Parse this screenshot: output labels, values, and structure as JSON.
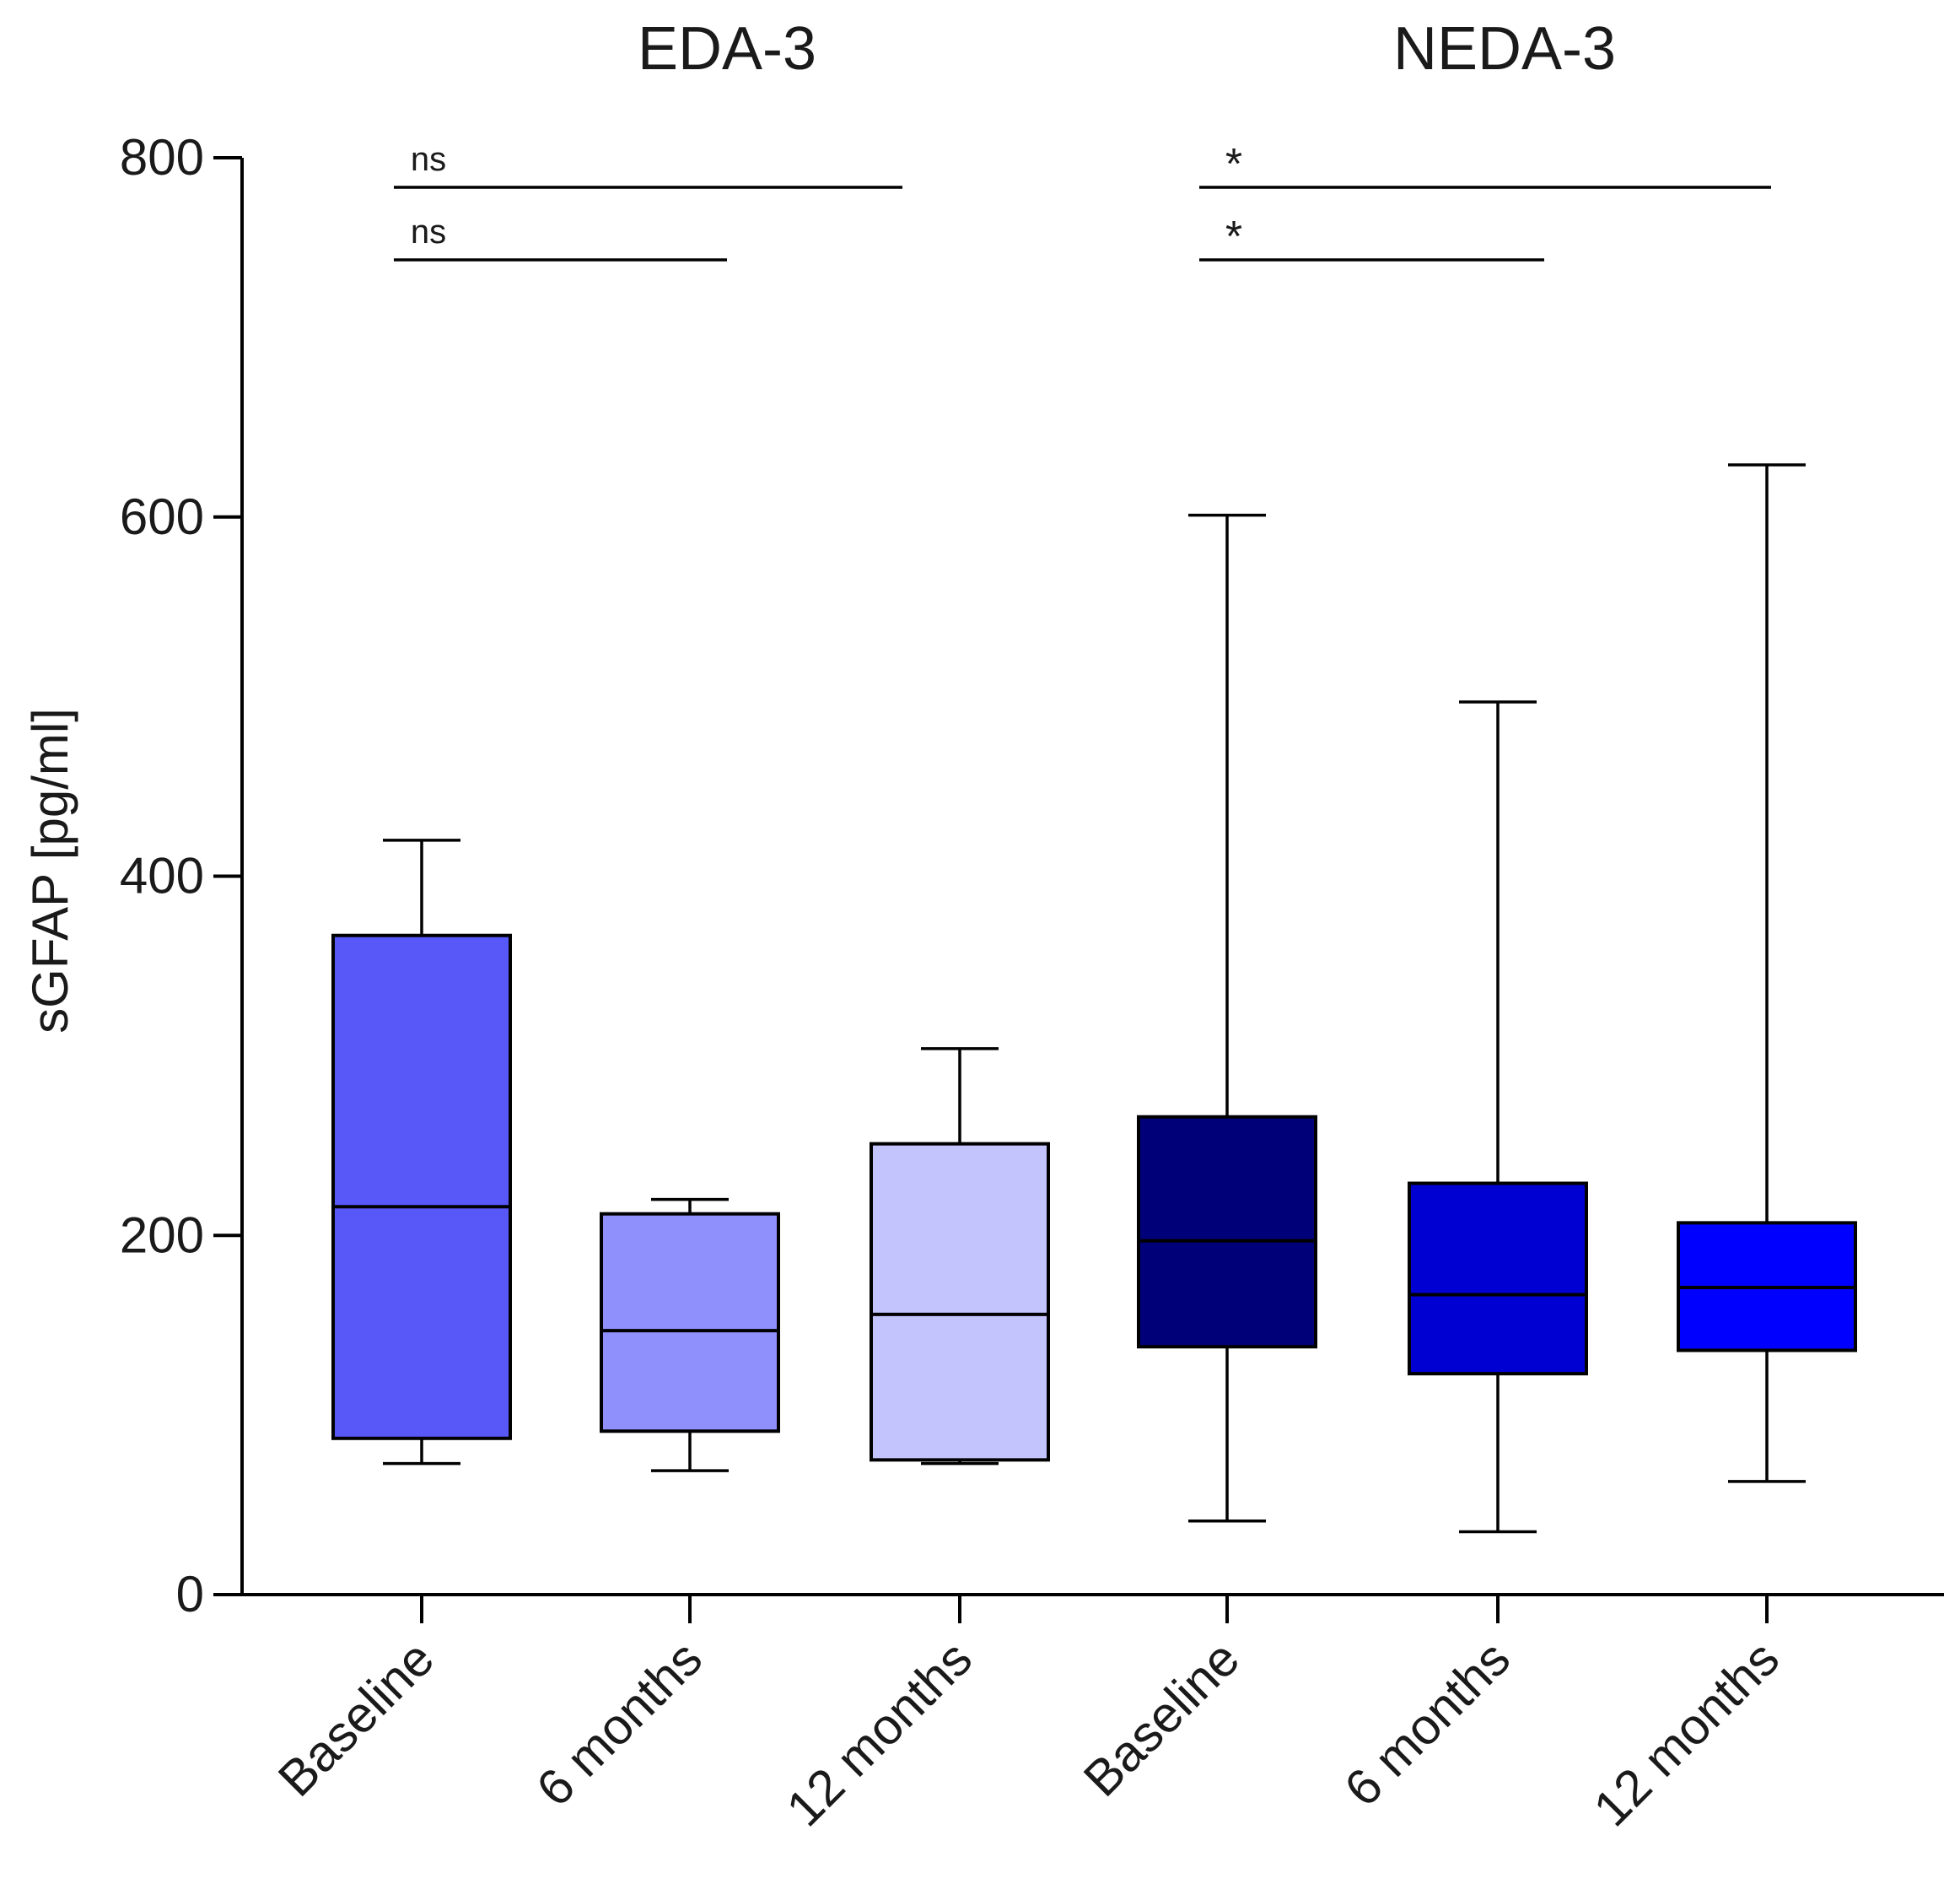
{
  "chart_data": {
    "type": "box",
    "ylabel": "sGFAP [pg/ml]",
    "ylim": [
      0,
      800
    ],
    "yticks": [
      "0",
      "200",
      "400",
      "600",
      "800"
    ],
    "groups": [
      {
        "label": "EDA-3",
        "categories": [
          0,
          1,
          2
        ]
      },
      {
        "label": "NEDA-3",
        "categories": [
          3,
          4,
          5
        ]
      }
    ],
    "categories": [
      "Baseline",
      "6 months",
      "12 months",
      "Baseline",
      "6 months",
      "12 months"
    ],
    "boxes": [
      {
        "category": "Baseline",
        "group": "EDA-3",
        "min": 73,
        "q1": 87,
        "median": 216,
        "q3": 367,
        "max": 420,
        "color": "#5858f8"
      },
      {
        "category": "6 months",
        "group": "EDA-3",
        "min": 69,
        "q1": 91,
        "median": 147,
        "q3": 212,
        "max": 220,
        "color": "#9090fc"
      },
      {
        "category": "12 months",
        "group": "EDA-3",
        "min": 73,
        "q1": 75,
        "median": 156,
        "q3": 251,
        "max": 304,
        "color": "#c3c3fe"
      },
      {
        "category": "Baseline",
        "group": "NEDA-3",
        "min": 41,
        "q1": 138,
        "median": 197,
        "q3": 266,
        "max": 601,
        "color": "#000078"
      },
      {
        "category": "6 months",
        "group": "NEDA-3",
        "min": 35,
        "q1": 123,
        "median": 167,
        "q3": 229,
        "max": 497,
        "color": "#0000d2"
      },
      {
        "category": "12 months",
        "group": "NEDA-3",
        "min": 63,
        "q1": 136,
        "median": 171,
        "q3": 207,
        "max": 629,
        "color": "#0000ff"
      }
    ],
    "annotations": [
      {
        "text": "ns",
        "from": 0,
        "to": 1,
        "level": 1
      },
      {
        "text": "ns",
        "from": 0,
        "to": 2,
        "level": 2
      },
      {
        "text": "*",
        "from": 3,
        "to": 4,
        "level": 1
      },
      {
        "text": "*",
        "from": 3,
        "to": 5,
        "level": 2
      }
    ]
  }
}
